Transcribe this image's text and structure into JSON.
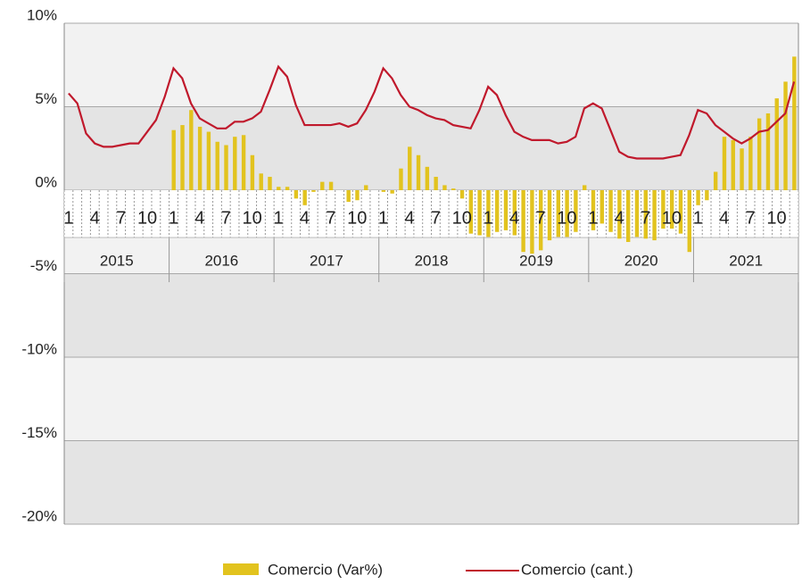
{
  "chart_data": {
    "type": "bar_line",
    "categories": [
      "1",
      null,
      null,
      "4",
      null,
      null,
      "7",
      null,
      null,
      "10",
      null,
      null,
      "1",
      null,
      null,
      "4",
      null,
      null,
      "7",
      null,
      null,
      "10",
      null,
      null,
      "1",
      null,
      null,
      "4",
      null,
      null,
      "7",
      null,
      null,
      "10",
      null,
      null,
      "1",
      null,
      null,
      "4",
      null,
      null,
      "7",
      null,
      null,
      "10",
      null,
      null,
      "1",
      null,
      null,
      "4",
      null,
      null,
      "7",
      null,
      null,
      "10",
      null,
      null,
      "1",
      null,
      null,
      "4",
      null,
      null,
      "7",
      null,
      null,
      "10",
      null,
      null,
      "1",
      null,
      null,
      "4",
      null,
      null,
      "7",
      null,
      null,
      "10",
      null,
      null
    ],
    "years": [
      "2015",
      "2016",
      "2017",
      "2018",
      "2019",
      "2020",
      "2021"
    ],
    "series": [
      {
        "name": "Comercio  (Var%)",
        "type": "bar",
        "color": "#e2c31e",
        "values": [
          null,
          null,
          null,
          null,
          null,
          null,
          null,
          null,
          null,
          null,
          null,
          null,
          3.6,
          3.9,
          4.8,
          3.8,
          3.5,
          2.9,
          2.7,
          3.2,
          3.3,
          2.1,
          1.0,
          0.8,
          0.2,
          0.2,
          -0.5,
          -0.9,
          -0.1,
          0.5,
          0.5,
          0.0,
          -0.7,
          -0.6,
          0.3,
          0.0,
          -0.1,
          -0.2,
          1.3,
          2.6,
          2.1,
          1.4,
          0.8,
          0.3,
          0.1,
          -0.5,
          -2.6,
          -2.7,
          -2.8,
          -2.5,
          -2.4,
          -2.7,
          -3.7,
          -3.8,
          -3.6,
          -3.0,
          -2.8,
          -2.8,
          -2.5,
          0.3,
          -2.4,
          -2.0,
          -2.5,
          -2.9,
          -3.1,
          -2.8,
          -2.9,
          -3.0,
          -2.3,
          -2.3,
          -2.6,
          -3.7,
          -0.9,
          -0.6,
          1.1,
          3.2,
          3.0,
          2.5,
          3.2,
          4.3,
          4.6,
          5.5,
          6.5,
          8.0
        ]
      },
      {
        "name": "Comercio (cant.)",
        "type": "line",
        "color": "#c0192c",
        "values": [
          5.8,
          5.2,
          3.4,
          2.8,
          2.6,
          2.6,
          2.7,
          2.8,
          2.8,
          3.5,
          4.2,
          5.6,
          7.3,
          6.7,
          5.2,
          4.3,
          4.0,
          3.7,
          3.7,
          4.1,
          4.1,
          4.3,
          4.7,
          6.0,
          7.4,
          6.8,
          5.1,
          3.9,
          3.9,
          3.9,
          3.9,
          4.0,
          3.8,
          4.0,
          4.8,
          5.9,
          7.3,
          6.7,
          5.7,
          5.0,
          4.8,
          4.5,
          4.3,
          4.2,
          3.9,
          3.8,
          3.7,
          4.8,
          6.2,
          5.7,
          4.5,
          3.5,
          3.2,
          3.0,
          3.0,
          3.0,
          2.8,
          2.9,
          3.2,
          4.9,
          5.2,
          4.9,
          3.6,
          2.3,
          2.0,
          1.9,
          1.9,
          1.9,
          1.9,
          2.0,
          2.1,
          3.3,
          4.8,
          4.6,
          3.9,
          3.5,
          3.1,
          2.8,
          3.1,
          3.5,
          3.6,
          4.1,
          4.6,
          6.5
        ]
      }
    ],
    "ylim": [
      -20,
      10
    ],
    "yticks": [
      {
        "value": -20,
        "label": "-20%"
      },
      {
        "value": -15,
        "label": "-15%"
      },
      {
        "value": -10,
        "label": "-10%"
      },
      {
        "value": -5,
        "label": "-5%"
      },
      {
        "value": 0,
        "label": "0%"
      },
      {
        "value": 5,
        "label": "5%"
      },
      {
        "value": 10,
        "label": "10%"
      }
    ],
    "grid": true,
    "legend": "bottom"
  }
}
